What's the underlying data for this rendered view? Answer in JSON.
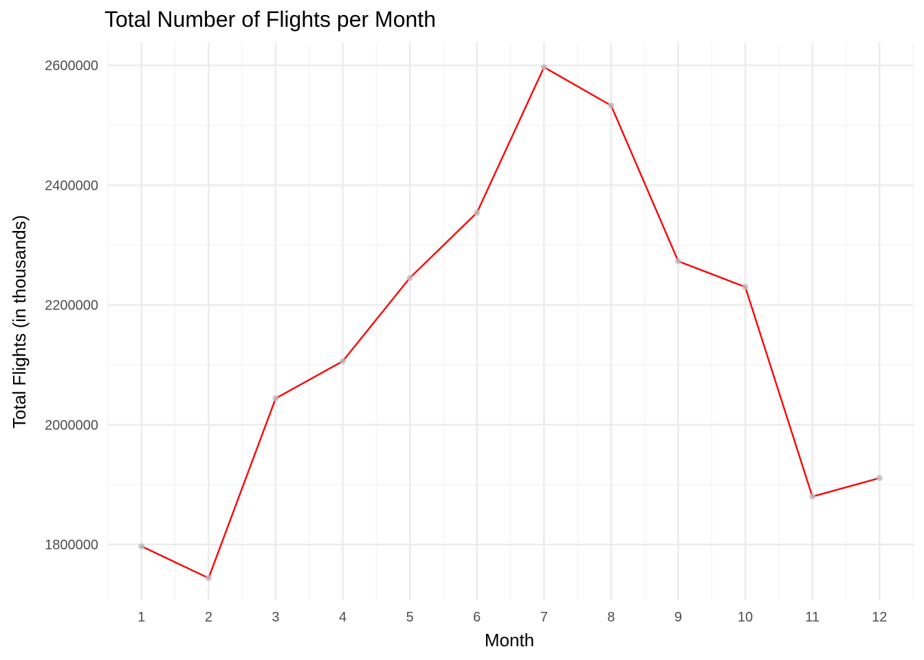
{
  "chart_data": {
    "type": "line",
    "title": "Total Number of Flights per Month",
    "xlabel": "Month",
    "ylabel": "Total Flights (in thousands)",
    "x": [
      1,
      2,
      3,
      4,
      5,
      6,
      7,
      8,
      9,
      10,
      11,
      12
    ],
    "values": [
      1797000,
      1744000,
      2044000,
      2106000,
      2245000,
      2354000,
      2597000,
      2533000,
      2273000,
      2230000,
      1880000,
      1911000
    ],
    "xlim": [
      0.5,
      12.5
    ],
    "ylim": [
      1707000,
      2638000
    ],
    "x_ticks": [
      "1",
      "2",
      "3",
      "4",
      "5",
      "6",
      "7",
      "8",
      "9",
      "10",
      "11",
      "12"
    ],
    "y_ticks": [
      1800000,
      2000000,
      2200000,
      2400000,
      2600000
    ],
    "y_tick_labels": [
      "1800000",
      "2000000",
      "2200000",
      "2400000",
      "2600000"
    ],
    "y_minor_ticks": [
      1900000,
      2100000,
      2300000,
      2500000
    ],
    "grid": true,
    "legend": "none",
    "colors": {
      "line": "#ff0000",
      "point": "#bdbdbd",
      "grid_major": "#ebebeb",
      "grid_minor": "#f2f2f2"
    }
  }
}
